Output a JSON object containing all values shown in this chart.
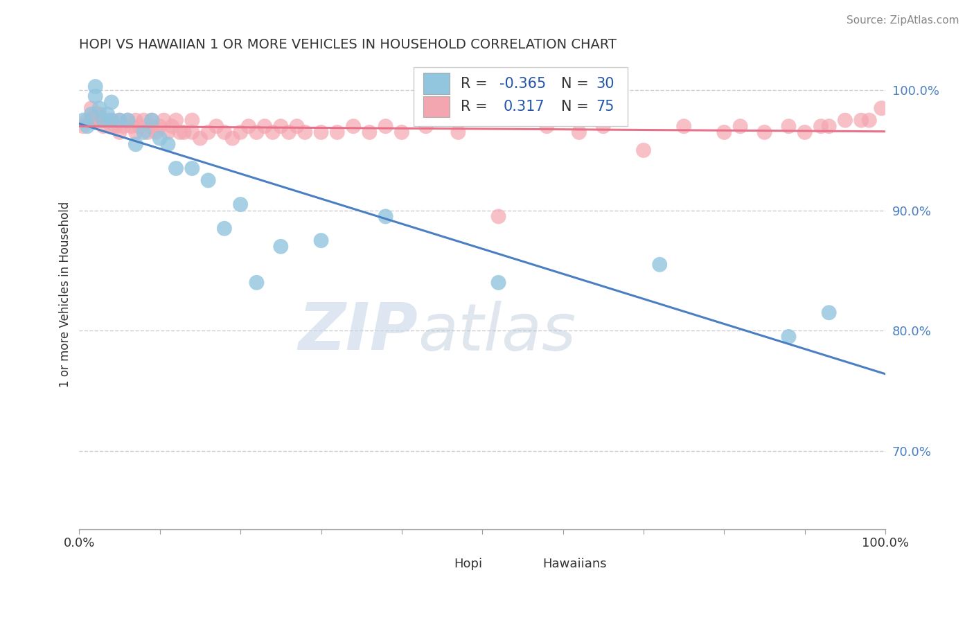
{
  "title": "HOPI VS HAWAIIAN 1 OR MORE VEHICLES IN HOUSEHOLD CORRELATION CHART",
  "source": "Source: ZipAtlas.com",
  "ylabel": "1 or more Vehicles in Household",
  "ytick_labels": [
    "70.0%",
    "80.0%",
    "90.0%",
    "100.0%"
  ],
  "ytick_values": [
    0.7,
    0.8,
    0.9,
    1.0
  ],
  "xlim": [
    0.0,
    1.0
  ],
  "ylim": [
    0.635,
    1.025
  ],
  "hopi_R": -0.365,
  "hopi_N": 30,
  "hawaiian_R": 0.317,
  "hawaiian_N": 75,
  "hopi_color": "#92c5de",
  "hawaiian_color": "#f4a6b0",
  "hopi_line_color": "#4a7fc1",
  "hawaiian_line_color": "#e8718a",
  "dashed_line_color": "#cccccc",
  "legend_R_color": "#2255aa",
  "watermark_zip": "ZIP",
  "watermark_atlas": "atlas",
  "hopi_x": [
    0.005,
    0.01,
    0.015,
    0.02,
    0.02,
    0.025,
    0.03,
    0.035,
    0.04,
    0.04,
    0.05,
    0.06,
    0.07,
    0.08,
    0.09,
    0.1,
    0.11,
    0.12,
    0.14,
    0.16,
    0.18,
    0.2,
    0.22,
    0.25,
    0.3,
    0.38,
    0.52,
    0.72,
    0.88,
    0.93
  ],
  "hopi_y": [
    0.975,
    0.97,
    0.98,
    1.003,
    0.995,
    0.985,
    0.975,
    0.98,
    0.975,
    0.99,
    0.975,
    0.975,
    0.955,
    0.965,
    0.975,
    0.96,
    0.955,
    0.935,
    0.935,
    0.925,
    0.885,
    0.905,
    0.84,
    0.87,
    0.875,
    0.895,
    0.84,
    0.855,
    0.795,
    0.815
  ],
  "hawaiian_x": [
    0.005,
    0.01,
    0.015,
    0.015,
    0.02,
    0.02,
    0.025,
    0.025,
    0.03,
    0.03,
    0.035,
    0.04,
    0.04,
    0.045,
    0.05,
    0.05,
    0.055,
    0.06,
    0.065,
    0.07,
    0.07,
    0.075,
    0.08,
    0.085,
    0.09,
    0.09,
    0.095,
    0.1,
    0.105,
    0.11,
    0.115,
    0.12,
    0.125,
    0.13,
    0.14,
    0.14,
    0.15,
    0.16,
    0.17,
    0.18,
    0.19,
    0.2,
    0.21,
    0.22,
    0.23,
    0.24,
    0.25,
    0.26,
    0.27,
    0.28,
    0.3,
    0.32,
    0.34,
    0.36,
    0.38,
    0.4,
    0.43,
    0.47,
    0.52,
    0.58,
    0.62,
    0.65,
    0.7,
    0.75,
    0.8,
    0.82,
    0.85,
    0.88,
    0.9,
    0.92,
    0.93,
    0.95,
    0.97,
    0.98,
    0.995
  ],
  "hawaiian_y": [
    0.97,
    0.975,
    0.975,
    0.985,
    0.975,
    0.98,
    0.975,
    0.98,
    0.975,
    0.97,
    0.975,
    0.97,
    0.975,
    0.97,
    0.975,
    0.965,
    0.97,
    0.975,
    0.97,
    0.975,
    0.965,
    0.97,
    0.975,
    0.965,
    0.97,
    0.975,
    0.965,
    0.97,
    0.975,
    0.965,
    0.97,
    0.975,
    0.965,
    0.965,
    0.965,
    0.975,
    0.96,
    0.965,
    0.97,
    0.965,
    0.96,
    0.965,
    0.97,
    0.965,
    0.97,
    0.965,
    0.97,
    0.965,
    0.97,
    0.965,
    0.965,
    0.965,
    0.97,
    0.965,
    0.97,
    0.965,
    0.97,
    0.965,
    0.895,
    0.97,
    0.965,
    0.97,
    0.95,
    0.97,
    0.965,
    0.97,
    0.965,
    0.97,
    0.965,
    0.97,
    0.97,
    0.975,
    0.975,
    0.975,
    0.985
  ],
  "xtick_positions": [
    0.0,
    0.1,
    0.2,
    0.3,
    0.4,
    0.5,
    0.6,
    0.7,
    0.8,
    0.9,
    1.0
  ],
  "xtick_labels": [
    "0.0%",
    "",
    "",
    "",
    "",
    "",
    "",
    "",
    "",
    "",
    "100.0%"
  ]
}
